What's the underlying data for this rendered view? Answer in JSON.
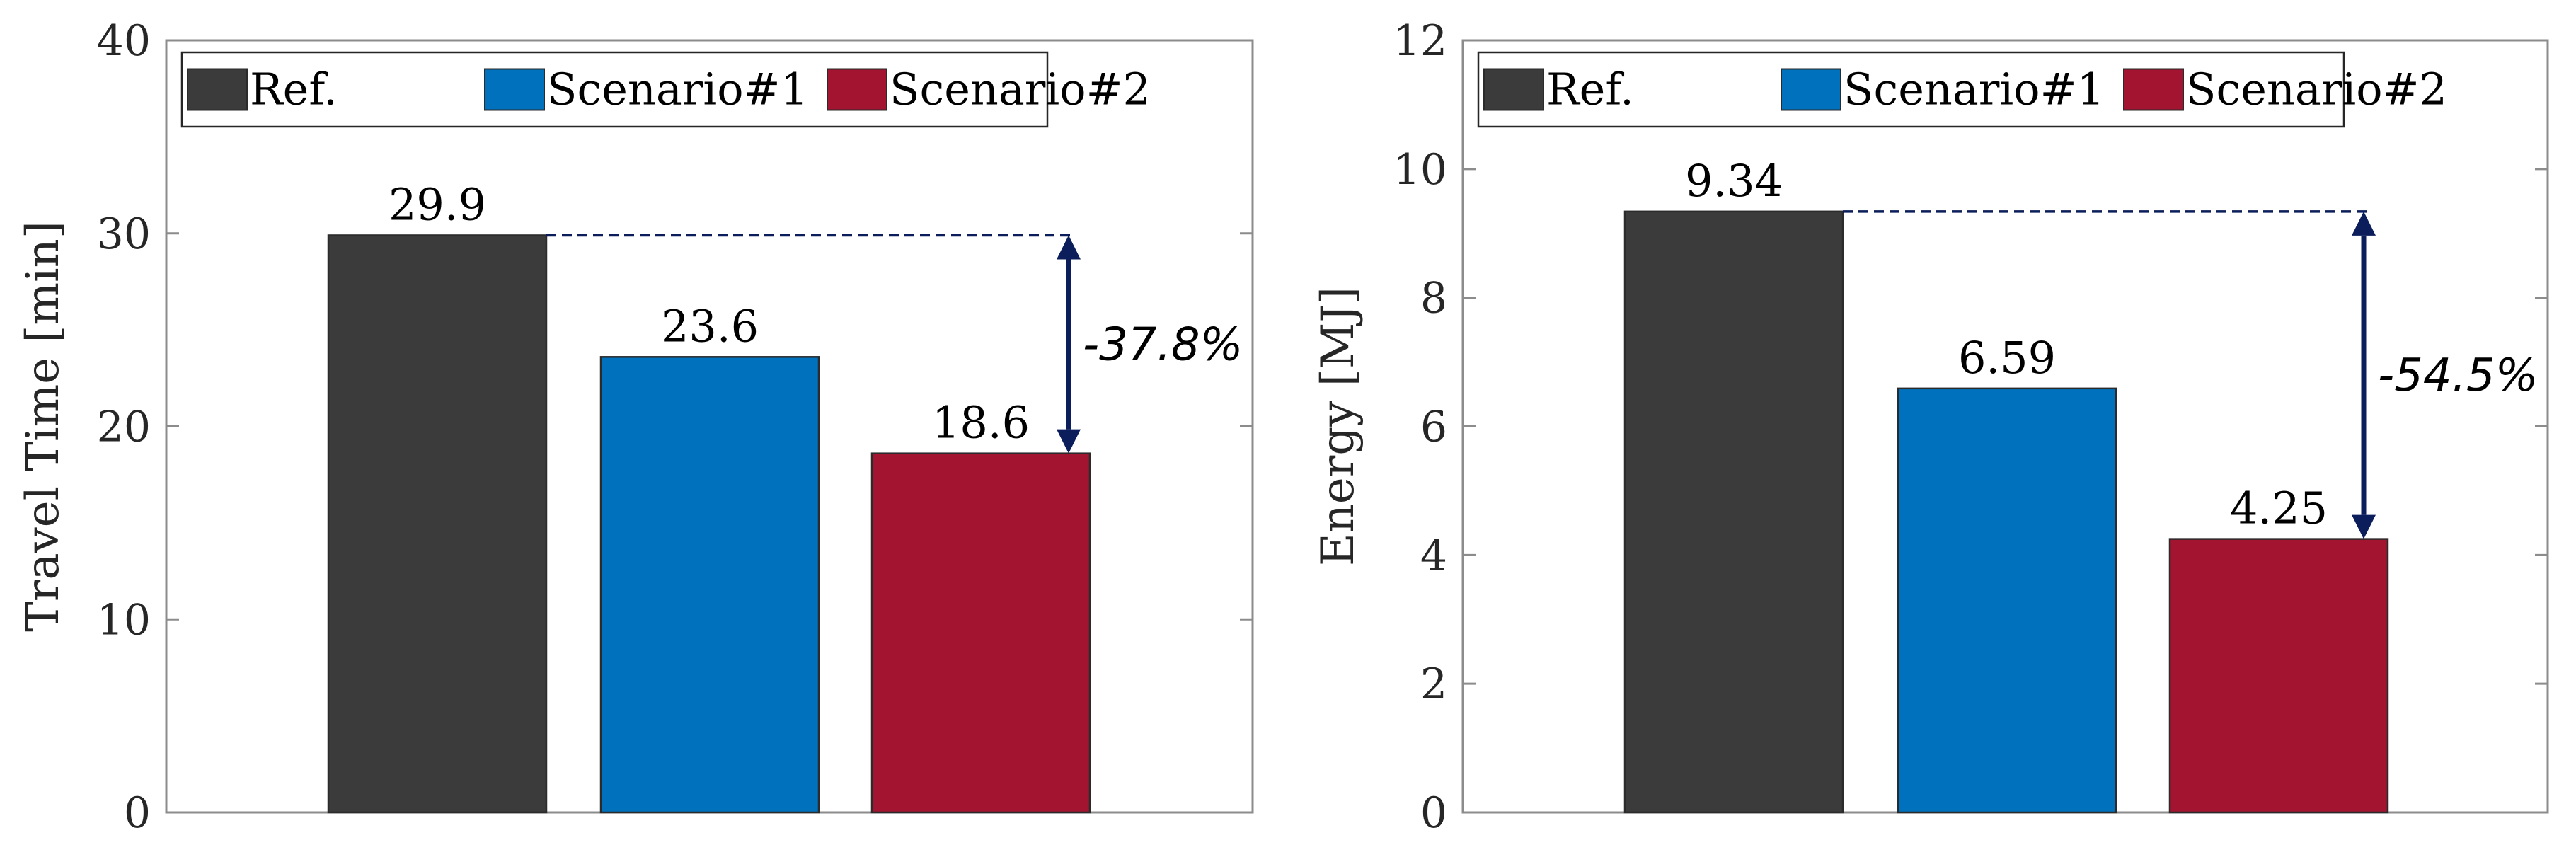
{
  "chart_data": [
    {
      "type": "bar",
      "categories": [
        "Ref.",
        "Scenario#1",
        "Scenario#2"
      ],
      "values": [
        29.9,
        23.6,
        18.6
      ],
      "value_labels": [
        "29.9",
        "23.6",
        "18.6"
      ],
      "ylabel": "Travel Time [min]",
      "ylim": [
        0,
        40
      ],
      "yticks": [
        0,
        10,
        20,
        30,
        40
      ],
      "colors": [
        "#3b3b3b",
        "#0072bd",
        "#a2142f"
      ],
      "legend": [
        "Ref.",
        "Scenario#1",
        "Scenario#2"
      ],
      "legend_position": "top-left",
      "grid": false,
      "annotation": {
        "text": "-37.8%",
        "from_value": 29.9,
        "to_value": 18.6
      }
    },
    {
      "type": "bar",
      "categories": [
        "Ref.",
        "Scenario#1",
        "Scenario#2"
      ],
      "values": [
        9.34,
        6.59,
        4.25
      ],
      "value_labels": [
        "9.34",
        "6.59",
        "4.25"
      ],
      "ylabel": "Energy [MJ]",
      "ylim": [
        0,
        12
      ],
      "yticks": [
        0,
        2,
        4,
        6,
        8,
        10,
        12
      ],
      "colors": [
        "#3b3b3b",
        "#0072bd",
        "#a2142f"
      ],
      "legend": [
        "Ref.",
        "Scenario#1",
        "Scenario#2"
      ],
      "legend_position": "top-left",
      "grid": false,
      "annotation": {
        "text": "-54.5%",
        "from_value": 9.34,
        "to_value": 4.25
      }
    }
  ]
}
